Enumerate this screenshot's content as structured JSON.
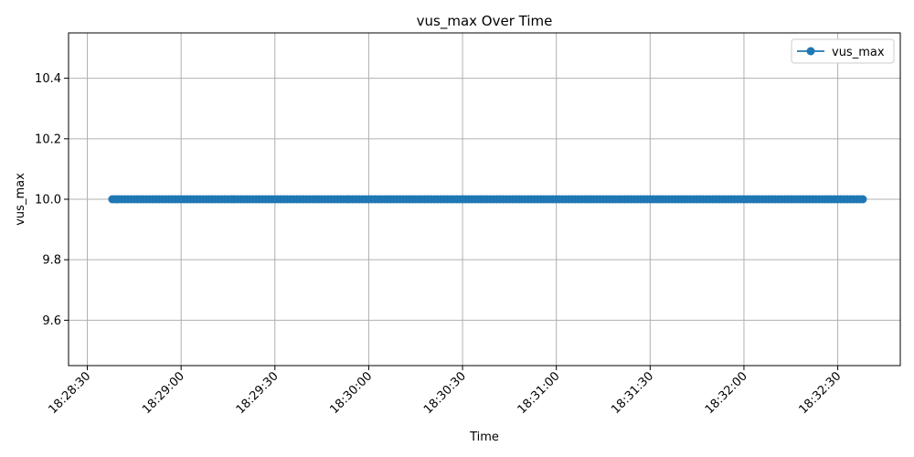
{
  "chart_data": {
    "type": "line",
    "title": "vus_max Over Time",
    "xlabel": "Time",
    "ylabel": "vus_max",
    "x_range": [
      "18:28:24",
      "18:32:50"
    ],
    "ylim": [
      9.45,
      10.55
    ],
    "x_ticks": [
      "18:28:30",
      "18:29:00",
      "18:29:30",
      "18:30:00",
      "18:30:30",
      "18:31:00",
      "18:31:30",
      "18:32:00",
      "18:32:30"
    ],
    "y_ticks": [
      "9.6",
      "9.8",
      "10.0",
      "10.2",
      "10.4"
    ],
    "x_tick_rotation_deg": 45,
    "grid": true,
    "legend_position": "top-right",
    "series": [
      {
        "name": "vus_max",
        "color": "#1f77b4",
        "marker": "circle",
        "x_start": "18:28:38",
        "x_end": "18:32:38",
        "x_step_seconds": 1,
        "value": 10.0
      }
    ]
  }
}
